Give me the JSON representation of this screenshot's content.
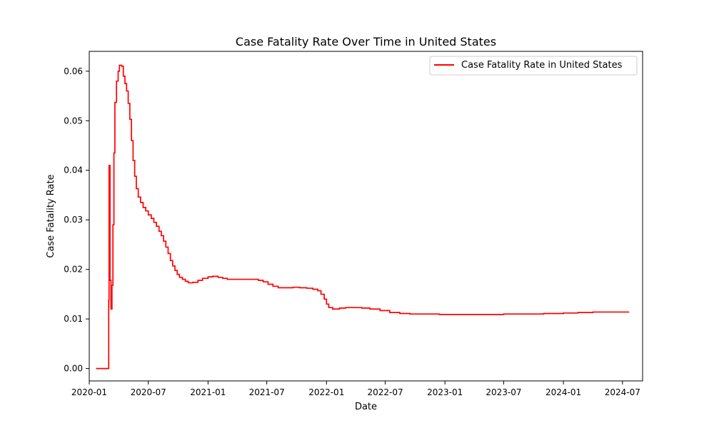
{
  "chart_data": {
    "type": "line",
    "title": "Case Fatality Rate Over Time in United States",
    "xlabel": "Date",
    "ylabel": "Case Fatality Rate",
    "x_axis": "date",
    "xlim": [
      "2020-01-01",
      "2024-09-01"
    ],
    "ylim": [
      -0.0025,
      0.064
    ],
    "xticks": [
      "2020-01",
      "2020-07",
      "2021-01",
      "2021-07",
      "2022-01",
      "2022-07",
      "2023-01",
      "2023-07",
      "2024-01",
      "2024-07"
    ],
    "yticks": [
      "0.00",
      "0.01",
      "0.02",
      "0.03",
      "0.04",
      "0.05",
      "0.06"
    ],
    "grid": false,
    "legend_position": "upper right",
    "series": [
      {
        "name": "Case Fatality Rate in United States",
        "color": "#ff0000",
        "step": true,
        "points": [
          [
            "2020-01-22",
            0.0
          ],
          [
            "2020-02-29",
            0.0
          ],
          [
            "2020-03-01",
            0.0138
          ],
          [
            "2020-03-02",
            0.041
          ],
          [
            "2020-03-04",
            0.041
          ],
          [
            "2020-03-05",
            0.0178
          ],
          [
            "2020-03-07",
            0.0178
          ],
          [
            "2020-03-08",
            0.012
          ],
          [
            "2020-03-10",
            0.012
          ],
          [
            "2020-03-11",
            0.0168
          ],
          [
            "2020-03-14",
            0.029
          ],
          [
            "2020-03-17",
            0.0435
          ],
          [
            "2020-03-20",
            0.0537
          ],
          [
            "2020-03-25",
            0.058
          ],
          [
            "2020-03-30",
            0.06
          ],
          [
            "2020-04-03",
            0.0612
          ],
          [
            "2020-04-10",
            0.061
          ],
          [
            "2020-04-15",
            0.059
          ],
          [
            "2020-04-20",
            0.0575
          ],
          [
            "2020-04-25",
            0.056
          ],
          [
            "2020-04-30",
            0.0535
          ],
          [
            "2020-05-05",
            0.0503
          ],
          [
            "2020-05-10",
            0.046
          ],
          [
            "2020-05-15",
            0.042
          ],
          [
            "2020-05-20",
            0.0388
          ],
          [
            "2020-05-25",
            0.0363
          ],
          [
            "2020-05-31",
            0.0346
          ],
          [
            "2020-06-07",
            0.0335
          ],
          [
            "2020-06-15",
            0.0325
          ],
          [
            "2020-06-23",
            0.0318
          ],
          [
            "2020-07-01",
            0.031
          ],
          [
            "2020-07-10",
            0.0303
          ],
          [
            "2020-07-18",
            0.0295
          ],
          [
            "2020-07-26",
            0.0287
          ],
          [
            "2020-08-03",
            0.0277
          ],
          [
            "2020-08-10",
            0.0268
          ],
          [
            "2020-08-17",
            0.0257
          ],
          [
            "2020-08-24",
            0.0245
          ],
          [
            "2020-08-31",
            0.0232
          ],
          [
            "2020-09-07",
            0.0218
          ],
          [
            "2020-09-14",
            0.0207
          ],
          [
            "2020-09-21",
            0.0198
          ],
          [
            "2020-09-28",
            0.019
          ],
          [
            "2020-10-05",
            0.0184
          ],
          [
            "2020-10-14",
            0.018
          ],
          [
            "2020-10-23",
            0.0176
          ],
          [
            "2020-11-01",
            0.0173
          ],
          [
            "2020-11-15",
            0.0174
          ],
          [
            "2020-12-01",
            0.0178
          ],
          [
            "2020-12-15",
            0.0182
          ],
          [
            "2021-01-01",
            0.0185
          ],
          [
            "2021-01-15",
            0.0186
          ],
          [
            "2021-02-01",
            0.0184
          ],
          [
            "2021-02-15",
            0.0182
          ],
          [
            "2021-03-01",
            0.018
          ],
          [
            "2021-04-01",
            0.018
          ],
          [
            "2021-05-01",
            0.018
          ],
          [
            "2021-05-20",
            0.018
          ],
          [
            "2021-06-05",
            0.0178
          ],
          [
            "2021-06-20",
            0.0175
          ],
          [
            "2021-07-05",
            0.017
          ],
          [
            "2021-07-20",
            0.0166
          ],
          [
            "2021-08-05",
            0.0163
          ],
          [
            "2021-09-01",
            0.0163
          ],
          [
            "2021-09-20",
            0.0164
          ],
          [
            "2021-10-10",
            0.0163
          ],
          [
            "2021-11-01",
            0.0162
          ],
          [
            "2021-11-20",
            0.016
          ],
          [
            "2021-12-05",
            0.0157
          ],
          [
            "2021-12-15",
            0.015
          ],
          [
            "2021-12-25",
            0.014
          ],
          [
            "2022-01-01",
            0.013
          ],
          [
            "2022-01-08",
            0.0123
          ],
          [
            "2022-01-20",
            0.012
          ],
          [
            "2022-02-10",
            0.0122
          ],
          [
            "2022-03-01",
            0.0123
          ],
          [
            "2022-04-01",
            0.0123
          ],
          [
            "2022-04-20",
            0.0122
          ],
          [
            "2022-05-15",
            0.012
          ],
          [
            "2022-06-15",
            0.0117
          ],
          [
            "2022-07-15",
            0.0113
          ],
          [
            "2022-08-15",
            0.0111
          ],
          [
            "2022-09-15",
            0.011
          ],
          [
            "2022-10-15",
            0.011
          ],
          [
            "2022-11-15",
            0.011
          ],
          [
            "2022-12-15",
            0.0109
          ],
          [
            "2023-01-15",
            0.0109
          ],
          [
            "2023-03-01",
            0.0109
          ],
          [
            "2023-05-01",
            0.0109
          ],
          [
            "2023-07-01",
            0.011
          ],
          [
            "2023-09-01",
            0.011
          ],
          [
            "2023-11-01",
            0.0111
          ],
          [
            "2024-01-01",
            0.0112
          ],
          [
            "2024-02-15",
            0.0113
          ],
          [
            "2024-04-01",
            0.0114
          ],
          [
            "2024-06-01",
            0.0114
          ],
          [
            "2024-07-20",
            0.0115
          ]
        ]
      }
    ]
  }
}
